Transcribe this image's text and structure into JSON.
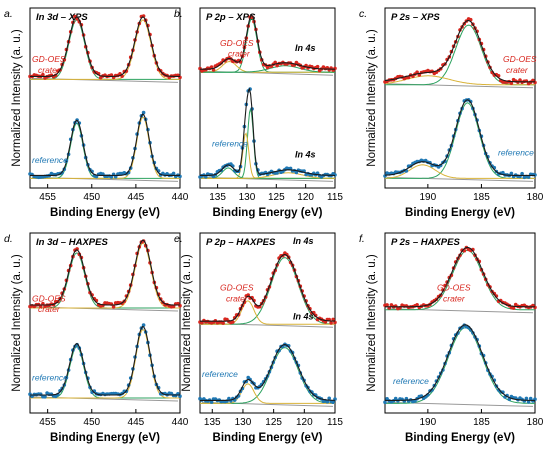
{
  "colors": {
    "red": "#d8261e",
    "blue": "#1f78b4",
    "fit": "#1a1a1a",
    "green": "#2ca25f",
    "yellow": "#d9b338",
    "bg": "#999999"
  },
  "chart_data": [
    {
      "type": "line",
      "panel": "a.",
      "title": "In 3d – XPS",
      "xlabel": "Binding Energy (eV)",
      "ylabel": "Normalized Intensity (a. u.)",
      "xlim": [
        457,
        440
      ],
      "xticks": [
        "455",
        "450",
        "445",
        "440"
      ],
      "xtick_values": [
        455,
        450,
        445,
        440
      ],
      "series": [
        {
          "name": "GD-OES crater",
          "color": "red",
          "peaks": [
            [
              451.7,
              1.0,
              0.9
            ],
            [
              444.2,
              1.0,
              0.9
            ]
          ]
        },
        {
          "name": "reference",
          "color": "blue",
          "peaks": [
            [
              451.7,
              0.9,
              0.7
            ],
            [
              444.2,
              1.0,
              0.7
            ]
          ]
        }
      ],
      "annotations": []
    },
    {
      "type": "line",
      "panel": "b.",
      "title": "P 2p – XPS",
      "xlabel": "Binding Energy (eV)",
      "ylabel": "",
      "xlim": [
        138,
        115
      ],
      "xticks": [
        "135",
        "130",
        "125",
        "120",
        "115"
      ],
      "xtick_values": [
        135,
        130,
        125,
        120,
        115
      ],
      "series": [
        {
          "name": "GD-OES crater",
          "color": "red",
          "peaks": [
            [
              129.2,
              1.0,
              0.9
            ],
            [
              133.0,
              0.2,
              1.2
            ],
            [
              123.5,
              0.12,
              2.5
            ]
          ]
        },
        {
          "name": "reference",
          "color": "blue",
          "peaks": [
            [
              129.4,
              1.0,
              0.5
            ],
            [
              130.2,
              0.65,
              0.5
            ],
            [
              133.2,
              0.15,
              1.0
            ],
            [
              123.0,
              0.08,
              2.5
            ]
          ]
        }
      ],
      "annotations": [
        "In 4s",
        "In 4s"
      ]
    },
    {
      "type": "line",
      "panel": "c.",
      "title": "P 2s – XPS",
      "xlabel": "Binding Energy (eV)",
      "ylabel": "Normalized Intensity (a. u.)",
      "xlim": [
        194,
        180
      ],
      "xticks": [
        "190",
        "185",
        "180"
      ],
      "xtick_values": [
        190,
        185,
        180
      ],
      "series": [
        {
          "name": "GD-OES crater",
          "color": "red",
          "peaks": [
            [
              186.2,
              1.0,
              1.2
            ],
            [
              190.0,
              0.15,
              2.0
            ]
          ]
        },
        {
          "name": "reference",
          "color": "blue",
          "peaks": [
            [
              186.3,
              1.0,
              1.1
            ],
            [
              190.5,
              0.18,
              1.2
            ]
          ]
        }
      ],
      "annotations": []
    },
    {
      "type": "line",
      "panel": "d.",
      "title": "In 3d – HAXPES",
      "xlabel": "Binding Energy (eV)",
      "ylabel": "Normalized Intensity (a. u.)",
      "xlim": [
        457,
        440
      ],
      "xticks": [
        "455",
        "450",
        "445",
        "440"
      ],
      "xtick_values": [
        455,
        450,
        445,
        440
      ],
      "series": [
        {
          "name": "GD-OES crater",
          "color": "red",
          "peaks": [
            [
              451.7,
              0.85,
              0.9
            ],
            [
              444.2,
              1.0,
              0.9
            ]
          ]
        },
        {
          "name": "reference",
          "color": "blue",
          "peaks": [
            [
              451.7,
              0.75,
              0.8
            ],
            [
              444.2,
              1.0,
              0.8
            ]
          ]
        }
      ],
      "annotations": []
    },
    {
      "type": "line",
      "panel": "e.",
      "title": "P 2p – HAXPES",
      "xlabel": "Binding Energy (eV)",
      "ylabel": "Normalized Intensity (a. u.)",
      "xlim": [
        137,
        115
      ],
      "xticks": [
        "135",
        "130",
        "125",
        "120",
        "115"
      ],
      "xtick_values": [
        135,
        130,
        125,
        120,
        115
      ],
      "series": [
        {
          "name": "GD-OES crater",
          "color": "red",
          "peaks": [
            [
              123.2,
              1.0,
              2.2
            ],
            [
              129.2,
              0.35,
              1.0
            ]
          ]
        },
        {
          "name": "reference",
          "color": "blue",
          "peaks": [
            [
              123.2,
              1.0,
              2.2
            ],
            [
              129.2,
              0.35,
              1.0
            ]
          ]
        }
      ],
      "annotations": [
        "In 4s",
        "In 4s"
      ]
    },
    {
      "type": "line",
      "panel": "f.",
      "title": "P 2s – HAXPES",
      "xlabel": "Binding Energy (eV)",
      "ylabel": "Normalized Intensity (a. u.)",
      "xlim": [
        194,
        180
      ],
      "xticks": [
        "190",
        "185",
        "180"
      ],
      "xtick_values": [
        190,
        185,
        180
      ],
      "series": [
        {
          "name": "GD-OES crater",
          "color": "red",
          "peaks": [
            [
              186.3,
              1.0,
              1.4
            ]
          ]
        },
        {
          "name": "reference",
          "color": "blue",
          "peaks": [
            [
              186.5,
              1.0,
              1.6
            ]
          ]
        }
      ],
      "annotations": []
    }
  ]
}
